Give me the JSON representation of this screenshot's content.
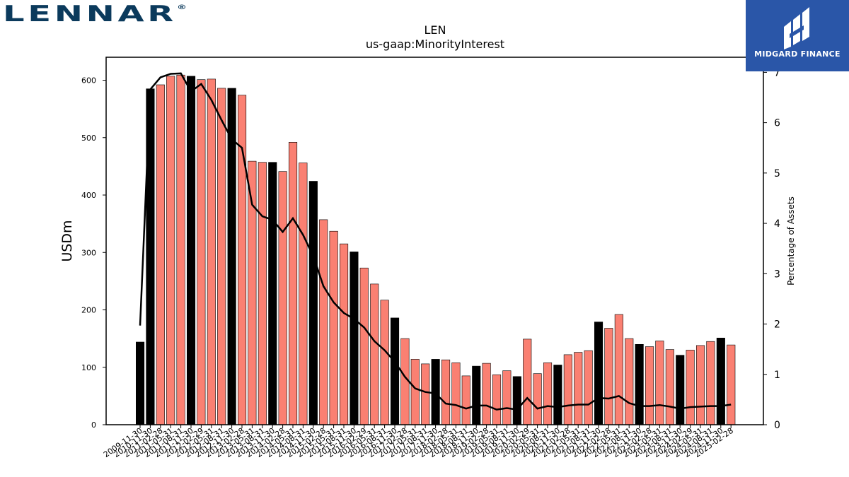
{
  "logos": {
    "company": "LENNAR",
    "company_mark": "®",
    "publisher": "MIDGARD FINANCE"
  },
  "colors": {
    "bar_default": "#fa8072",
    "bar_highlight": "#000000",
    "line": "#000000",
    "publisher_bg": "#2a56a8",
    "company": "#0b3a5c"
  },
  "chart_data": {
    "type": "bar",
    "title": "LEN",
    "subtitle": "us-gaap:MinorityInterest",
    "ylabel": "USDm",
    "y2label": "Percentage of Assets",
    "ylim": [
      0,
      640
    ],
    "y2lim": [
      0,
      7.3
    ],
    "yticks": [
      0,
      100,
      200,
      300,
      400,
      500,
      600
    ],
    "y2ticks": [
      0,
      1,
      2,
      3,
      4,
      5,
      6,
      7
    ],
    "tick_labels": [
      "2009-11-30",
      "2010-11-30",
      "2011-02-28",
      "2011-05-31",
      "2011-08-31",
      "2011-11-30",
      "2012-02-29",
      "2012-05-31",
      "2012-08-31",
      "2012-11-30",
      "2013-02-28",
      "2013-05-31",
      "2013-08-31",
      "2013-11-30",
      "2014-02-28",
      "2014-05-31",
      "2014-08-31",
      "2014-11-30",
      "2015-02-28",
      "2015-05-31",
      "2015-08-31",
      "2015-11-30",
      "2016-02-29",
      "2016-05-31",
      "2016-08-31",
      "2016-11-30",
      "2017-02-28",
      "2017-05-31",
      "2017-08-31",
      "2017-11-30",
      "2018-02-28",
      "2018-05-31",
      "2018-08-31",
      "2018-11-30",
      "2019-02-28",
      "2019-05-31",
      "2019-08-31",
      "2019-11-30",
      "2020-02-29",
      "2020-05-31",
      "2020-08-31",
      "2020-11-30",
      "2021-02-28",
      "2021-05-31",
      "2021-08-31",
      "2021-11-30",
      "2022-02-28",
      "2022-05-31",
      "2022-08-31",
      "2022-11-30",
      "2023-02-28",
      "2023-05-31",
      "2023-08-31",
      "2023-11-30",
      "2024-02-29",
      "2024-05-31",
      "2024-08-31",
      "2024-11-30",
      "2025-02-28"
    ],
    "values": [
      144,
      585,
      592,
      607,
      609,
      607,
      601,
      602,
      586,
      586,
      574,
      459,
      457,
      457,
      441,
      492,
      456,
      424,
      357,
      337,
      315,
      301,
      273,
      245,
      217,
      186,
      150,
      114,
      106,
      114,
      113,
      108,
      85,
      102,
      107,
      87,
      94,
      84,
      149,
      89,
      108,
      104,
      122,
      126,
      129,
      179,
      168,
      192,
      150,
      140,
      136,
      146,
      131,
      121,
      130,
      138,
      145,
      151,
      139
    ],
    "highlighted": [
      true,
      true,
      false,
      false,
      false,
      true,
      false,
      false,
      false,
      true,
      false,
      false,
      false,
      true,
      false,
      false,
      false,
      true,
      false,
      false,
      false,
      true,
      false,
      false,
      false,
      true,
      false,
      false,
      false,
      true,
      false,
      false,
      false,
      true,
      false,
      false,
      false,
      true,
      false,
      false,
      false,
      true,
      false,
      false,
      false,
      true,
      false,
      false,
      false,
      true,
      false,
      false,
      false,
      true,
      false,
      false,
      false,
      true,
      false
    ],
    "pct_of_assets": [
      1.97,
      6.66,
      6.9,
      6.97,
      6.98,
      6.62,
      6.77,
      6.45,
      6.05,
      5.67,
      5.5,
      4.37,
      4.14,
      4.07,
      3.83,
      4.1,
      3.77,
      3.35,
      2.75,
      2.43,
      2.22,
      2.1,
      1.93,
      1.66,
      1.48,
      1.25,
      0.95,
      0.72,
      0.65,
      0.62,
      0.42,
      0.39,
      0.32,
      0.38,
      0.38,
      0.3,
      0.33,
      0.3,
      0.53,
      0.32,
      0.37,
      0.35,
      0.38,
      0.4,
      0.4,
      0.53,
      0.52,
      0.57,
      0.43,
      0.37,
      0.37,
      0.39,
      0.36,
      0.32,
      0.35,
      0.36,
      0.37,
      0.37,
      0.4
    ],
    "grid": false
  }
}
